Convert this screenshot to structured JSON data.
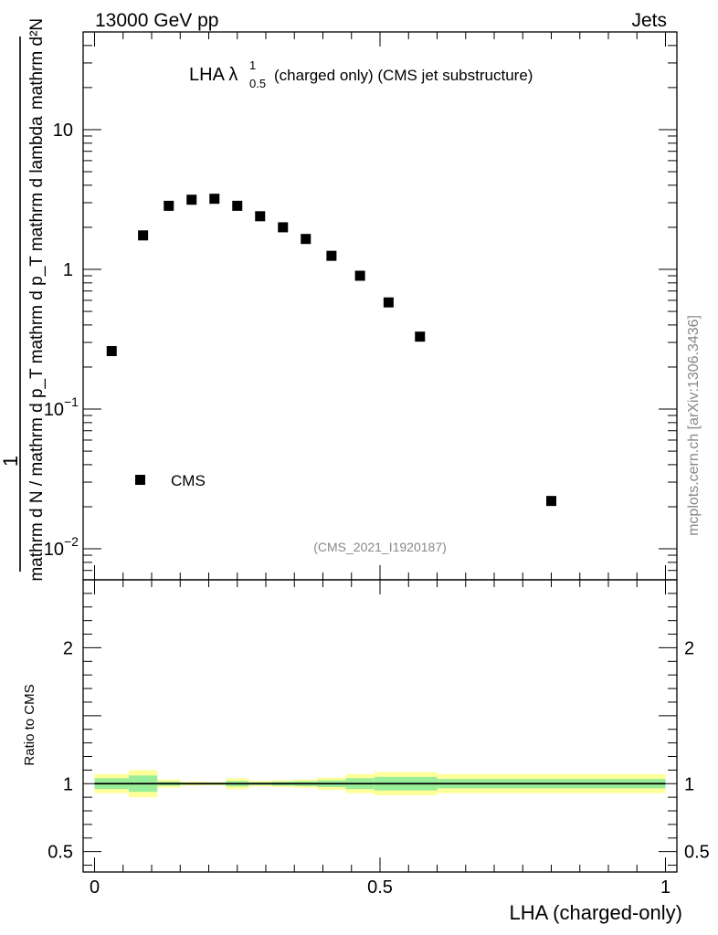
{
  "header": {
    "energy_label": "13000 GeV pp",
    "process_label": "Jets",
    "side_label": "mcplots.cern.ch [arXiv:1306.3436]"
  },
  "chart_data": {
    "type": "scatter",
    "title_prefix": "LHA λ",
    "title_sup": "1",
    "title_sub": "0.5",
    "title_suffix": "(charged only) (CMS jet substructure)",
    "analysis_label": "(CMS_2021_I1920187)",
    "xlabel": "LHA (charged-only)",
    "ylabel_numerator": "1",
    "ylabel_denominator": "mathrm d N / mathrm d p_T mathrm d p_T mathrm d lambda",
    "ylabel_top": "mathrm d²N",
    "xlim": [
      -0.02,
      1.02
    ],
    "ylim": [
      0.006,
      50
    ],
    "yscale": "log",
    "x_ticks": [
      {
        "value": 0,
        "label": "0"
      },
      {
        "value": 0.5,
        "label": "0.5"
      },
      {
        "value": 1,
        "label": "1"
      }
    ],
    "y_ticks": [
      {
        "value": 10,
        "label": "10",
        "sup": ""
      },
      {
        "value": 1,
        "label": "1",
        "sup": ""
      },
      {
        "value": 0.1,
        "label": "10",
        "sup": "−1"
      },
      {
        "value": 0.01,
        "label": "10",
        "sup": "−2"
      }
    ],
    "legend": {
      "entry": "CMS",
      "position": "bottom-left"
    },
    "series": [
      {
        "name": "CMS",
        "marker": "square",
        "color": "#000000",
        "x": [
          0.03,
          0.085,
          0.13,
          0.17,
          0.21,
          0.25,
          0.29,
          0.33,
          0.37,
          0.415,
          0.465,
          0.515,
          0.57,
          0.8
        ],
        "y": [
          0.26,
          1.75,
          2.85,
          3.15,
          3.2,
          2.85,
          2.4,
          2.0,
          1.65,
          1.25,
          0.9,
          0.58,
          0.33,
          0.022
        ]
      }
    ],
    "ratio": {
      "ylabel": "Ratio to CMS",
      "ylim": [
        0.35,
        2.5
      ],
      "y_ticks": [
        {
          "value": 2,
          "label": "2"
        },
        {
          "value": 1,
          "label": "1"
        },
        {
          "value": 0.5,
          "label": "0.5"
        }
      ],
      "reference_line": 1,
      "bins": [
        {
          "x0": 0.0,
          "x1": 0.06,
          "inner": 0.04,
          "outer": 0.07
        },
        {
          "x0": 0.06,
          "x1": 0.11,
          "inner": 0.06,
          "outer": 0.1
        },
        {
          "x0": 0.11,
          "x1": 0.15,
          "inner": 0.015,
          "outer": 0.03
        },
        {
          "x0": 0.15,
          "x1": 0.19,
          "inner": 0.008,
          "outer": 0.015
        },
        {
          "x0": 0.19,
          "x1": 0.23,
          "inner": 0.008,
          "outer": 0.012
        },
        {
          "x0": 0.23,
          "x1": 0.27,
          "inner": 0.02,
          "outer": 0.04
        },
        {
          "x0": 0.27,
          "x1": 0.31,
          "inner": 0.01,
          "outer": 0.02
        },
        {
          "x0": 0.31,
          "x1": 0.35,
          "inner": 0.015,
          "outer": 0.025
        },
        {
          "x0": 0.35,
          "x1": 0.39,
          "inner": 0.018,
          "outer": 0.03
        },
        {
          "x0": 0.39,
          "x1": 0.44,
          "inner": 0.025,
          "outer": 0.045
        },
        {
          "x0": 0.44,
          "x1": 0.49,
          "inner": 0.04,
          "outer": 0.07
        },
        {
          "x0": 0.49,
          "x1": 0.54,
          "inner": 0.05,
          "outer": 0.085
        },
        {
          "x0": 0.54,
          "x1": 0.6,
          "inner": 0.05,
          "outer": 0.085
        },
        {
          "x0": 0.6,
          "x1": 1.0,
          "inner": 0.035,
          "outer": 0.07
        }
      ],
      "colors": {
        "outer": "#ffff99",
        "inner": "#99ee99"
      }
    }
  }
}
